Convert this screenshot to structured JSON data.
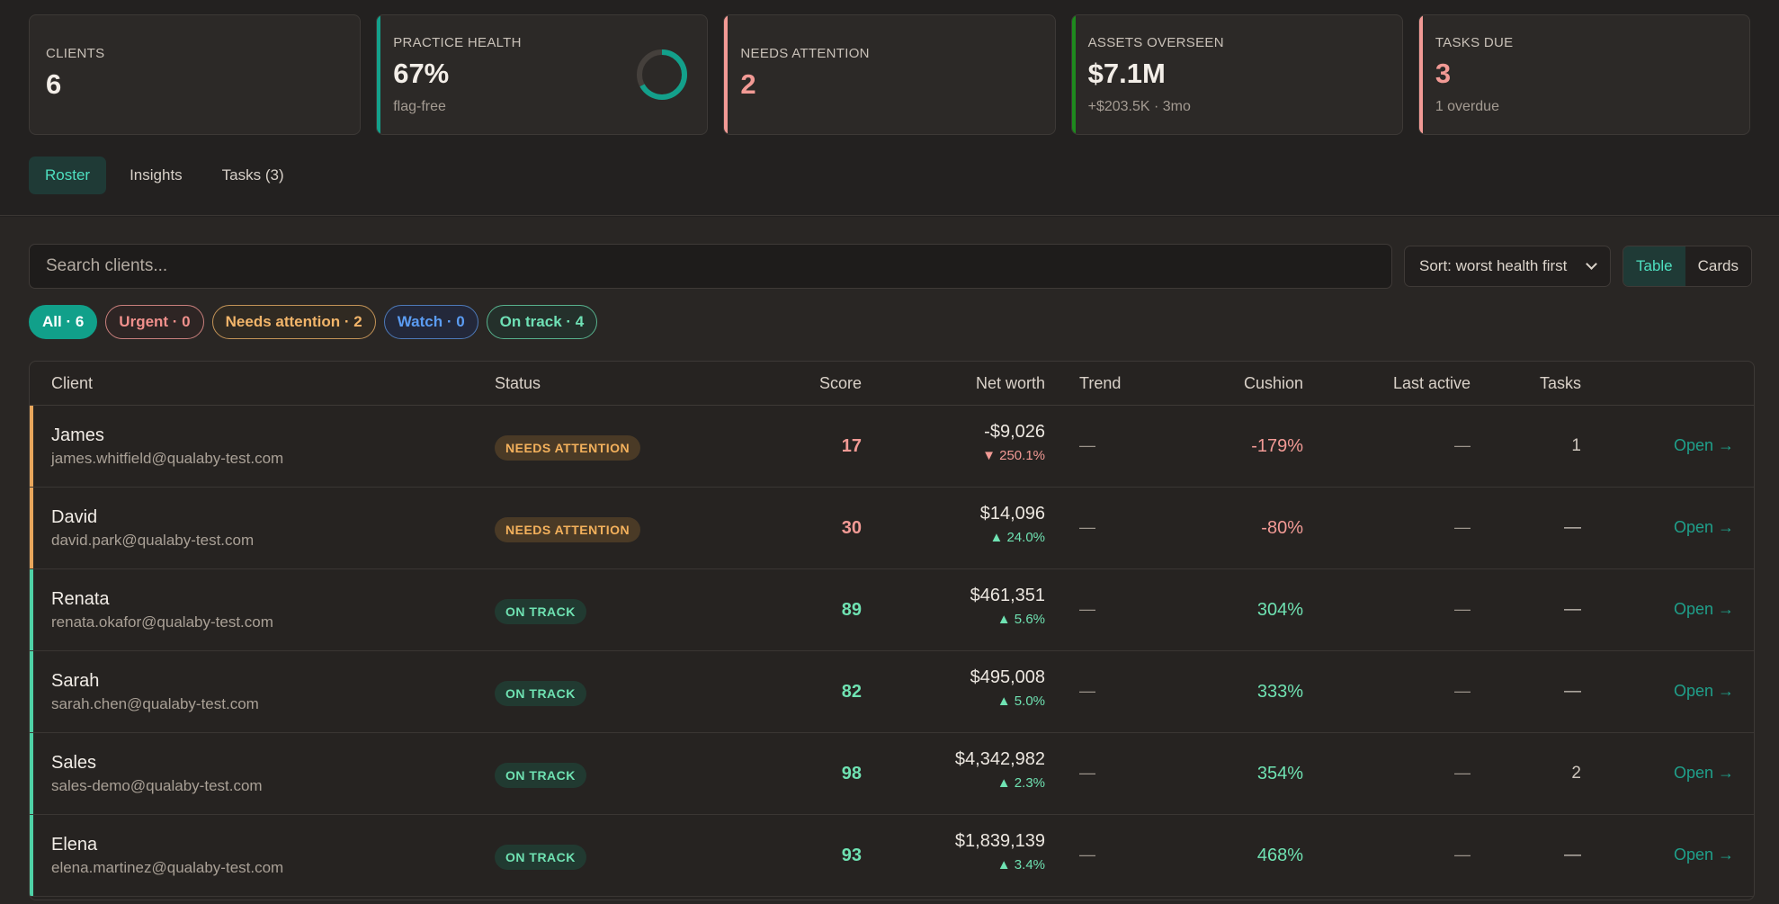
{
  "summary": {
    "clients": {
      "label": "CLIENTS",
      "value": "6"
    },
    "health": {
      "label": "PRACTICE HEALTH",
      "value": "67%",
      "sub": "flag-free",
      "ring_fraction": 0.67,
      "accent": "#13a08b"
    },
    "attention": {
      "label": "NEEDS ATTENTION",
      "value": "2",
      "accent": "#f29a95"
    },
    "assets": {
      "label": "ASSETS OVERSEEN",
      "value": "$7.1M",
      "sub": "+$203.5K · 3mo",
      "accent": "#1e8a1e"
    },
    "tasks": {
      "label": "TASKS DUE",
      "value": "3",
      "sub": "1 overdue",
      "accent": "#f29a95"
    }
  },
  "tabs": [
    {
      "label": "Roster"
    },
    {
      "label": "Insights"
    },
    {
      "label": "Tasks (3)"
    }
  ],
  "search": {
    "placeholder": "Search clients..."
  },
  "sort": {
    "label": "Sort: worst health first"
  },
  "view": {
    "table": "Table",
    "cards": "Cards"
  },
  "filters": {
    "all": "All · 6",
    "urgent": "Urgent · 0",
    "needs": "Needs attention · 2",
    "watch": "Watch · 0",
    "ontrack": "On track · 4"
  },
  "columns": {
    "client": "Client",
    "status": "Status",
    "score": "Score",
    "networth": "Net worth",
    "trend": "Trend",
    "cushion": "Cushion",
    "last_active": "Last active",
    "tasks": "Tasks"
  },
  "rows": [
    {
      "name": "James",
      "email": "james.whitfield@qualaby-test.com",
      "status": "NEEDS ATTENTION",
      "score": "17",
      "networth": "-$9,026",
      "delta": "▼ 250.1%",
      "trend": "—",
      "cushion": "-179%",
      "last_active": "—",
      "tasks": "1",
      "open": "Open →"
    },
    {
      "name": "David",
      "email": "david.park@qualaby-test.com",
      "status": "NEEDS ATTENTION",
      "score": "30",
      "networth": "$14,096",
      "delta": "▲ 24.0%",
      "trend": "—",
      "cushion": "-80%",
      "last_active": "—",
      "tasks": "—",
      "open": "Open →"
    },
    {
      "name": "Renata",
      "email": "renata.okafor@qualaby-test.com",
      "status": "ON TRACK",
      "score": "89",
      "networth": "$461,351",
      "delta": "▲ 5.6%",
      "trend": "—",
      "cushion": "304%",
      "last_active": "—",
      "tasks": "—",
      "open": "Open →"
    },
    {
      "name": "Sarah",
      "email": "sarah.chen@qualaby-test.com",
      "status": "ON TRACK",
      "score": "82",
      "networth": "$495,008",
      "delta": "▲ 5.0%",
      "trend": "—",
      "cushion": "333%",
      "last_active": "—",
      "tasks": "—",
      "open": "Open →"
    },
    {
      "name": "Sales",
      "email": "sales-demo@qualaby-test.com",
      "status": "ON TRACK",
      "score": "98",
      "networth": "$4,342,982",
      "delta": "▲ 2.3%",
      "trend": "—",
      "cushion": "354%",
      "last_active": "—",
      "tasks": "2",
      "open": "Open →"
    },
    {
      "name": "Elena",
      "email": "elena.martinez@qualaby-test.com",
      "status": "ON TRACK",
      "score": "93",
      "networth": "$1,839,139",
      "delta": "▲ 3.4%",
      "trend": "—",
      "cushion": "468%",
      "last_active": "—",
      "tasks": "—",
      "open": "Open →"
    }
  ],
  "colors": {
    "needs_bar": "#e8a65c",
    "ontrack_bar": "#4fd1a6",
    "red": "#f29a95",
    "green": "#6fe2b2"
  }
}
